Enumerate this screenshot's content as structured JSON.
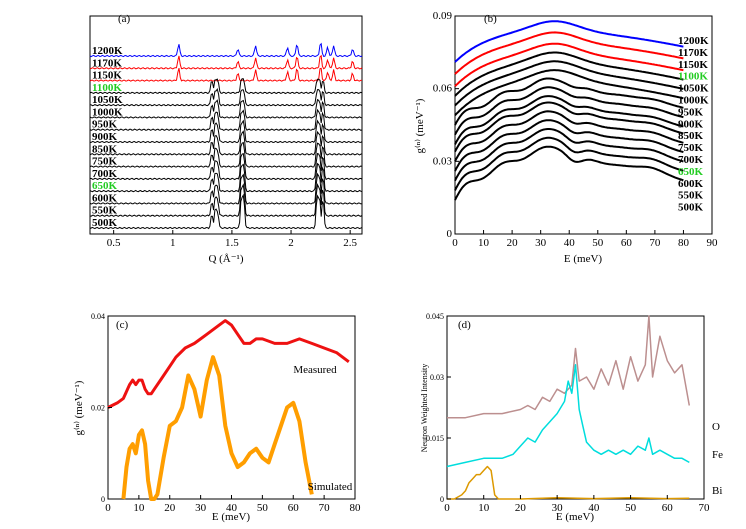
{
  "chart_data": [
    {
      "id": "a",
      "type": "line",
      "panel_label": "(a)",
      "xlabel": "Q (Å⁻¹)",
      "ylabel": "",
      "xlim": [
        0.3,
        2.6
      ],
      "x_ticks": [
        "0.5",
        "1",
        "1.5",
        "2",
        "2.5"
      ],
      "x_tick_values": [
        0.5,
        1.0,
        1.5,
        2.0,
        2.5
      ],
      "offset_labels": [
        {
          "label": "1200K",
          "color": "#000000"
        },
        {
          "label": "1170K",
          "color": "#000000"
        },
        {
          "label": "1150K",
          "color": "#000000"
        },
        {
          "label": "1100K",
          "color": "#22cc22"
        },
        {
          "label": "1050K",
          "color": "#000000"
        },
        {
          "label": "1000K",
          "color": "#000000"
        },
        {
          "label": "950K",
          "color": "#000000"
        },
        {
          "label": "900K",
          "color": "#000000"
        },
        {
          "label": "850K",
          "color": "#000000"
        },
        {
          "label": "750K",
          "color": "#000000"
        },
        {
          "label": "700K",
          "color": "#000000"
        },
        {
          "label": "650K",
          "color": "#22cc22"
        },
        {
          "label": "600K",
          "color": "#000000"
        },
        {
          "label": "550K",
          "color": "#000000"
        },
        {
          "label": "500K",
          "color": "#000000"
        }
      ],
      "series_colors": [
        "#0000ff",
        "#ff0000",
        "#ff0000",
        "#000000",
        "#000000",
        "#000000",
        "#000000",
        "#000000",
        "#000000",
        "#000000",
        "#000000",
        "#000000",
        "#000000",
        "#000000",
        "#000000"
      ]
    },
    {
      "id": "b",
      "type": "line",
      "panel_label": "(b)",
      "xlabel": "E (meV)",
      "ylabel": "g⁽ⁿ⁾ (meV⁻¹)",
      "xlim": [
        0,
        90
      ],
      "ylim": [
        0,
        0.09
      ],
      "x_ticks": [
        "0",
        "10",
        "20",
        "30",
        "40",
        "50",
        "60",
        "70",
        "80",
        "90"
      ],
      "y_ticks": [
        "0",
        "0.03",
        "0.06",
        "0.09"
      ],
      "offset_labels": [
        {
          "label": "1200K",
          "color": "#000000"
        },
        {
          "label": "1170K",
          "color": "#000000"
        },
        {
          "label": "1150K",
          "color": "#000000"
        },
        {
          "label": "1100K",
          "color": "#22cc22"
        },
        {
          "label": "1050K",
          "color": "#000000"
        },
        {
          "label": "1000K",
          "color": "#000000"
        },
        {
          "label": "950K",
          "color": "#000000"
        },
        {
          "label": "900K",
          "color": "#000000"
        },
        {
          "label": "850K",
          "color": "#000000"
        },
        {
          "label": "750K",
          "color": "#000000"
        },
        {
          "label": "700K",
          "color": "#000000"
        },
        {
          "label": "650K",
          "color": "#22cc22"
        },
        {
          "label": "600K",
          "color": "#000000"
        },
        {
          "label": "550K",
          "color": "#000000"
        },
        {
          "label": "500K",
          "color": "#000000"
        }
      ],
      "top_curve_start_values": [
        0.071,
        0.066,
        0.061,
        0.057,
        0.053,
        0.049,
        0.045,
        0.041,
        0.037,
        0.034,
        0.03,
        0.026,
        0.022,
        0.018,
        0.014
      ],
      "series_colors": [
        "#0000ff",
        "#ff0000",
        "#ff0000",
        "#000000",
        "#000000",
        "#000000",
        "#000000",
        "#000000",
        "#000000",
        "#000000",
        "#000000",
        "#000000",
        "#000000",
        "#000000",
        "#000000"
      ]
    },
    {
      "id": "c",
      "type": "line",
      "panel_label": "(c)",
      "xlabel": "E (meV)",
      "ylabel": "g⁽ⁿ⁾ (meV⁻¹)",
      "xlim": [
        0,
        80
      ],
      "ylim": [
        0,
        0.04
      ],
      "x_ticks": [
        "0",
        "10",
        "20",
        "30",
        "40",
        "50",
        "60",
        "70",
        "80"
      ],
      "y_ticks": [
        "0",
        "0.02",
        "0.04"
      ],
      "series": [
        {
          "name": "Measured",
          "color": "#ee1111",
          "x": [
            0,
            3,
            5,
            7,
            8,
            9,
            10,
            11,
            12,
            13,
            14,
            15,
            17,
            20,
            22,
            25,
            28,
            30,
            32,
            34,
            36,
            38,
            40,
            42,
            44,
            46,
            48,
            50,
            54,
            58,
            62,
            66,
            70,
            74,
            78
          ],
          "y": [
            0.02,
            0.021,
            0.022,
            0.025,
            0.026,
            0.025,
            0.026,
            0.026,
            0.024,
            0.023,
            0.023,
            0.024,
            0.026,
            0.029,
            0.031,
            0.033,
            0.034,
            0.035,
            0.036,
            0.037,
            0.038,
            0.039,
            0.038,
            0.036,
            0.034,
            0.034,
            0.035,
            0.035,
            0.034,
            0.034,
            0.035,
            0.034,
            0.033,
            0.032,
            0.03
          ]
        },
        {
          "name": "Simulated",
          "color": "#ff9e00",
          "x": [
            5,
            6,
            7,
            8,
            9,
            10,
            11,
            12,
            13,
            14,
            15,
            16,
            18,
            20,
            22,
            24,
            26,
            28,
            30,
            32,
            34,
            36,
            38,
            40,
            42,
            44,
            46,
            48,
            50,
            52,
            54,
            56,
            58,
            60,
            62,
            64,
            66
          ],
          "y": [
            0.0,
            0.007,
            0.011,
            0.012,
            0.01,
            0.014,
            0.015,
            0.012,
            0.004,
            0.0,
            0.0,
            0.001,
            0.009,
            0.016,
            0.017,
            0.02,
            0.027,
            0.024,
            0.018,
            0.026,
            0.031,
            0.027,
            0.016,
            0.01,
            0.007,
            0.008,
            0.01,
            0.011,
            0.009,
            0.008,
            0.012,
            0.016,
            0.02,
            0.021,
            0.017,
            0.008,
            0.001
          ]
        }
      ]
    },
    {
      "id": "d",
      "type": "line",
      "panel_label": "(d)",
      "xlabel": "E (meV)",
      "ylabel": "Neutron Weighted Intensity",
      "xlim": [
        0,
        70
      ],
      "ylim": [
        0,
        0.045
      ],
      "x_ticks": [
        "0",
        "10",
        "20",
        "30",
        "40",
        "50",
        "60",
        "70"
      ],
      "y_ticks": [
        "0",
        "0.015",
        "0.03",
        "0.045"
      ],
      "series": [
        {
          "name": "O",
          "color": "#bc8f8f",
          "x": [
            0,
            5,
            10,
            15,
            20,
            22,
            24,
            26,
            28,
            30,
            32,
            34,
            35,
            36,
            38,
            40,
            42,
            44,
            46,
            48,
            50,
            52,
            54,
            55,
            56,
            58,
            60,
            62,
            64,
            66
          ],
          "y": [
            0.02,
            0.02,
            0.021,
            0.021,
            0.022,
            0.023,
            0.022,
            0.025,
            0.024,
            0.027,
            0.026,
            0.028,
            0.037,
            0.029,
            0.03,
            0.027,
            0.032,
            0.028,
            0.034,
            0.027,
            0.035,
            0.029,
            0.033,
            0.045,
            0.03,
            0.04,
            0.034,
            0.031,
            0.033,
            0.023
          ]
        },
        {
          "name": "Fe",
          "color": "#00dddd",
          "x": [
            0,
            5,
            10,
            15,
            18,
            20,
            22,
            24,
            26,
            28,
            30,
            32,
            33,
            34,
            35,
            36,
            37,
            38,
            40,
            42,
            44,
            46,
            48,
            50,
            52,
            54,
            55,
            56,
            58,
            60,
            62,
            64,
            66
          ],
          "y": [
            0.008,
            0.009,
            0.01,
            0.01,
            0.011,
            0.013,
            0.015,
            0.014,
            0.017,
            0.019,
            0.021,
            0.024,
            0.029,
            0.026,
            0.033,
            0.022,
            0.018,
            0.014,
            0.012,
            0.011,
            0.012,
            0.011,
            0.012,
            0.011,
            0.013,
            0.012,
            0.015,
            0.011,
            0.012,
            0.011,
            0.01,
            0.01,
            0.009
          ]
        },
        {
          "name": "Bi",
          "color": "#dd9900",
          "x": [
            0,
            2,
            4,
            5,
            6,
            7,
            8,
            9,
            10,
            11,
            12,
            13,
            14,
            20,
            30,
            40,
            50,
            60,
            66
          ],
          "y": [
            0.0,
            0.0,
            0.001,
            0.002,
            0.004,
            0.005,
            0.006,
            0.006,
            0.007,
            0.008,
            0.007,
            0.001,
            0.0,
            0.0,
            0.0003,
            0.0001,
            0.0003,
            0.0001,
            0.0002
          ]
        }
      ]
    }
  ]
}
